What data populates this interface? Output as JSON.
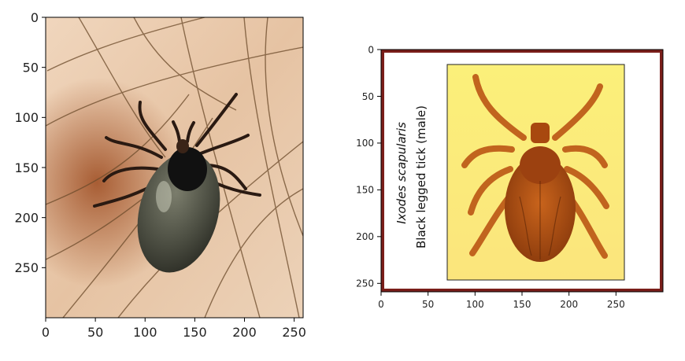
{
  "chart_data": [
    {
      "type": "image",
      "content": "photo of a tick on hairy skin",
      "xticks": [
        0,
        50,
        100,
        150,
        200,
        250
      ],
      "yticks": [
        0,
        50,
        100,
        150,
        200,
        250
      ],
      "xlim": [
        0,
        259
      ],
      "ylim": [
        300,
        0
      ],
      "colors": {
        "skin": "#e9c8a8",
        "skin_dark": "#a55a2a",
        "hair": "#6b4a2a",
        "tick_body": "#4d4f43",
        "tick_shield": "#111111",
        "tick_legs": "#2a1a12"
      }
    },
    {
      "type": "image",
      "content": "illustration of a black legged tick",
      "xticks": [
        0,
        50,
        100,
        150,
        200,
        250
      ],
      "yticks": [
        0,
        50,
        100,
        150,
        200,
        250
      ],
      "xlim": [
        0,
        300
      ],
      "ylim": [
        259,
        0
      ],
      "caption_lines": [
        "Ixodes scapularis",
        "Black legged tick (male)"
      ],
      "colors": {
        "frame": "#7a1e1a",
        "background": "#ffffff",
        "panel": "#fbf17c",
        "tick_body": "#a3470f",
        "tick_legs": "#c1641e"
      }
    }
  ]
}
